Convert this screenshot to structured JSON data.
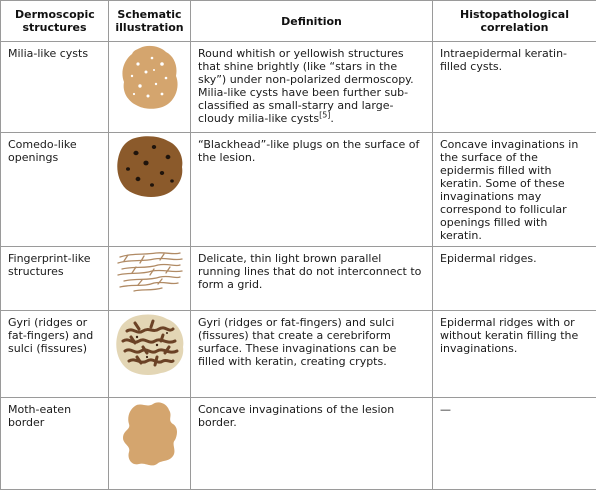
{
  "headers": {
    "structures": "Dermoscopic structures",
    "illustration": "Schematic illustration",
    "definition": "Definition",
    "correlation": "Histopathological correlation"
  },
  "rows": [
    {
      "structure": "Milia-like cysts",
      "illustration_icon": "milia-like-cysts-illustration",
      "definition": "Round whitish or yellowish structures that shine brightly (like “stars in the sky”) under non-polarized dermoscopy. Milia-like cysts have been further sub-classified as small-starry and large-cloudy milia-like cysts",
      "definition_ref": "[5]",
      "definition_end": ".",
      "correlation": "Intraepidermal keratin-filled cysts."
    },
    {
      "structure": "Comedo-like openings",
      "illustration_icon": "comedo-like-openings-illustration",
      "definition": "“Blackhead”-like plugs on the surface of the lesion.",
      "correlation": "Concave invaginations in the surface of the epidermis filled with keratin. Some of these invaginations may correspond to follicular openings filled with keratin."
    },
    {
      "structure": "Fingerprint-like structures",
      "illustration_icon": "fingerprint-like-structures-illustration",
      "definition": "Delicate, thin light brown parallel running lines that do not interconnect to form a grid.",
      "correlation": "Epidermal ridges."
    },
    {
      "structure": "Gyri (ridges or fat-fingers) and sulci (fissures)",
      "illustration_icon": "gyri-and-sulci-illustration",
      "definition": "Gyri (ridges or fat-fingers) and sulci (fissures) that create a cerebriform surface. These invaginations can be filled with keratin, creating crypts.",
      "correlation": "Epidermal ridges with or without keratin filling the invaginations."
    },
    {
      "structure": "Moth-eaten border",
      "illustration_icon": "moth-eaten-border-illustration",
      "definition": "Concave invaginations of the lesion border.",
      "correlation": "—"
    }
  ],
  "colors": {
    "lesion_light": "#d4a56e",
    "lesion_dark": "#8b5a2b",
    "gyri_fill": "#e3d6b5",
    "gyri_dark": "#6b4226",
    "border": "#9a9a9a"
  }
}
